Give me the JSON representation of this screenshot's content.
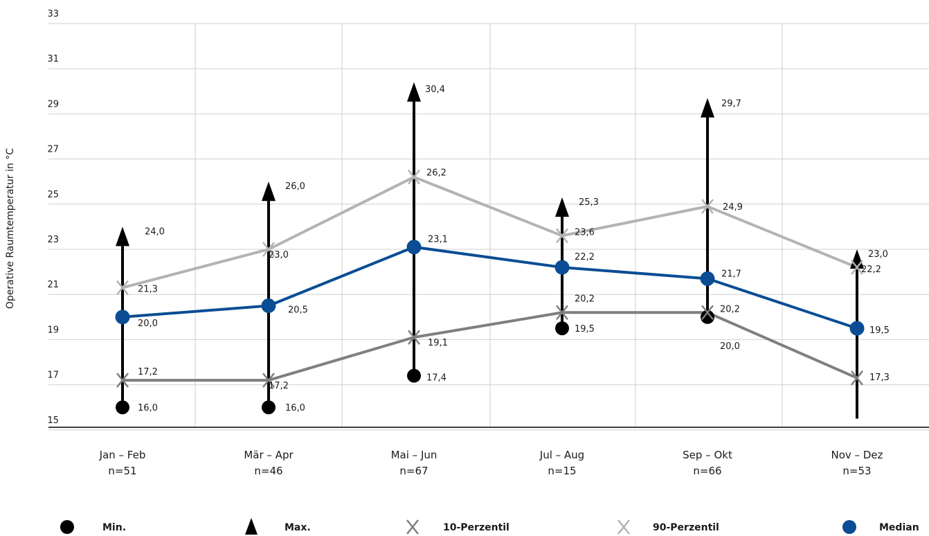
{
  "chart_data": {
    "type": "line",
    "title": "",
    "xlabel": "",
    "ylabel": "Operative Raumtemperatur in °C",
    "ylim": [
      14.5,
      33
    ],
    "yticks": [
      15,
      17,
      19,
      21,
      23,
      25,
      27,
      29,
      31,
      33
    ],
    "grid": true,
    "legend_position": "bottom",
    "categories": [
      "Jan – Feb",
      "Mär – Apr",
      "Mai – Jun",
      "Jul – Aug",
      "Sep – Okt",
      "Nov – Dez"
    ],
    "sample_sizes": [
      "n=51",
      "n=46",
      "n=67",
      "n=15",
      "n=66",
      "n=53"
    ],
    "series": [
      {
        "name": "Min.",
        "marker": "circle",
        "color": "#000000",
        "values": [
          16.0,
          16.0,
          17.4,
          19.5,
          20.0,
          15.5
        ],
        "labels": [
          "16,0",
          "16,0",
          "17,4",
          "19,5",
          "20,0",
          ""
        ]
      },
      {
        "name": "Max.",
        "marker": "triangle",
        "color": "#000000",
        "values": [
          24.0,
          26.0,
          30.4,
          25.3,
          29.7,
          23.0
        ],
        "labels": [
          "24,0",
          "26,0",
          "30,4",
          "25,3",
          "29,7",
          "23,0"
        ]
      },
      {
        "name": "10-Perzentil",
        "marker": "x",
        "color": "#7f7f7f",
        "values": [
          17.2,
          17.2,
          19.1,
          20.2,
          20.2,
          17.3
        ],
        "labels": [
          "17,2",
          "17,2",
          "19,1",
          "20,2",
          "20,2",
          "17,3"
        ]
      },
      {
        "name": "90-Perzentil",
        "marker": "x",
        "color": "#b3b3b3",
        "values": [
          21.3,
          23.0,
          26.2,
          23.6,
          24.9,
          22.2
        ],
        "labels": [
          "21,3",
          "23,0",
          "26,2",
          "23,6",
          "24,9",
          "22,2"
        ]
      },
      {
        "name": "Median",
        "marker": "circle",
        "color": "#0a4d94",
        "values": [
          20.0,
          20.5,
          23.1,
          22.2,
          21.7,
          19.5
        ],
        "labels": [
          "20,0",
          "20,5",
          "23,1",
          "22,2",
          "21,7",
          "19,5"
        ]
      }
    ],
    "legend": [
      "Min.",
      "Max.",
      "10-Perzentil",
      "90-Perzentil",
      "Median"
    ]
  }
}
